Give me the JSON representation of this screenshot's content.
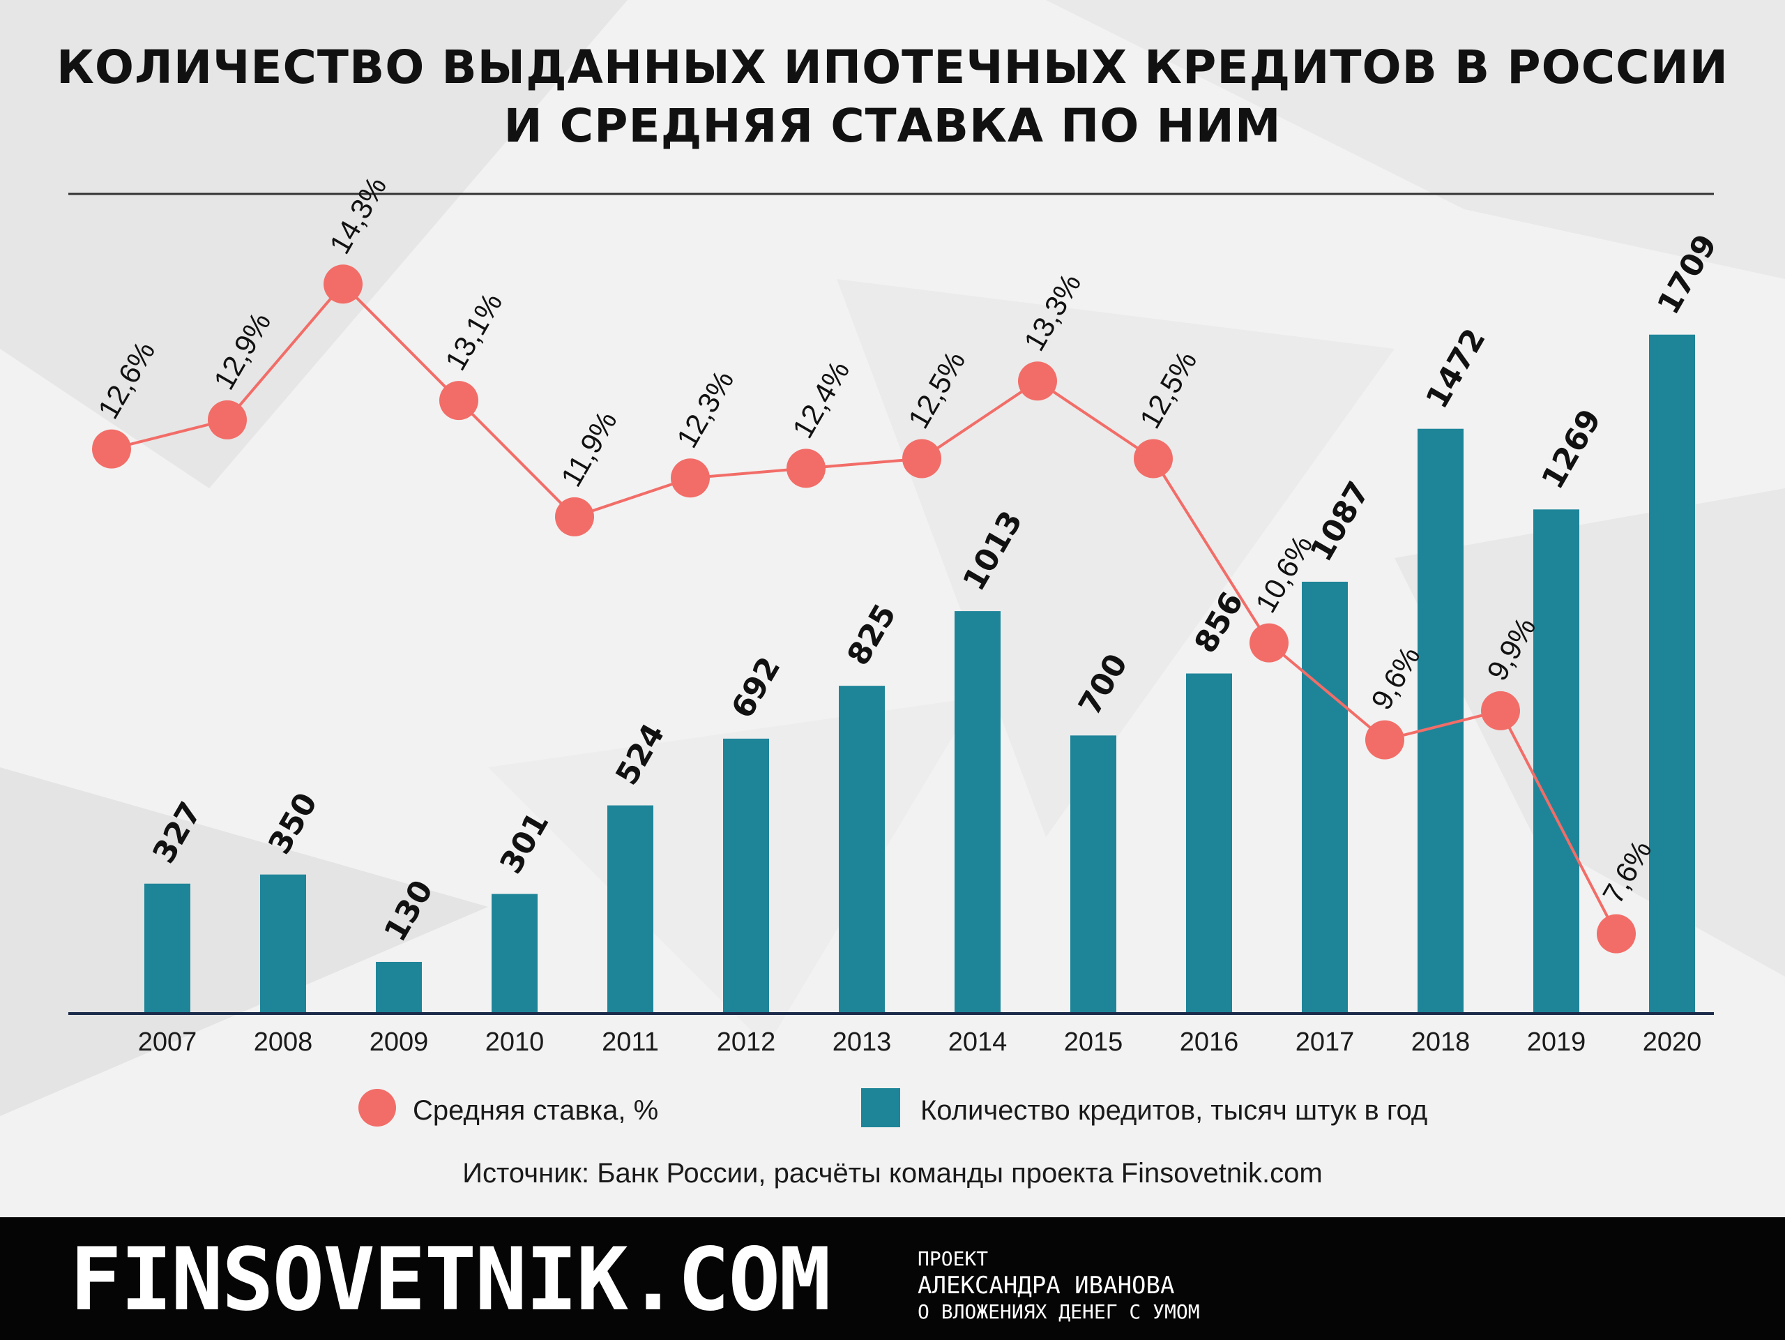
{
  "title": {
    "line1": "КОЛИЧЕСТВО ВЫДАННЫХ ИПОТЕЧНЫХ КРЕДИТОВ В РОССИИ",
    "line2": "И СРЕДНЯЯ СТАВКА ПО НИМ"
  },
  "chart_data": {
    "type": "bar",
    "categories": [
      "2007",
      "2008",
      "2009",
      "2010",
      "2011",
      "2012",
      "2013",
      "2014",
      "2015",
      "2016",
      "2017",
      "2018",
      "2019",
      "2020"
    ],
    "series": [
      {
        "name": "Количество кредитов, тысяч штук в год",
        "type": "bar",
        "values": [
          327,
          350,
          130,
          301,
          524,
          692,
          825,
          1013,
          700,
          856,
          1087,
          1472,
          1269,
          1709
        ],
        "labels": [
          "327",
          "350",
          "130",
          "301",
          "524",
          "692",
          "825",
          "1013",
          "700",
          "856",
          "1087",
          "1472",
          "1269",
          "1709"
        ]
      },
      {
        "name": "Средняя ставка, %",
        "type": "line",
        "values": [
          12.6,
          12.9,
          14.3,
          13.1,
          11.9,
          12.3,
          12.4,
          12.5,
          13.3,
          12.5,
          10.6,
          9.6,
          9.9,
          7.6
        ],
        "labels": [
          "12,6%",
          "12,9%",
          "14,3%",
          "13,1%",
          "11,9%",
          "12,3%",
          "12,4%",
          "12,5%",
          "13,3%",
          "12,5%",
          "10,6%",
          "9,6%",
          "9,9%",
          "7,6%"
        ]
      }
    ],
    "legend": {
      "placement": "bottom",
      "items": [
        "Средняя ставка, %",
        "Количество кредитов, тысяч штук в год"
      ]
    },
    "colors": {
      "bar": "#1e8599",
      "line": "#f26d68",
      "axis": "#1c2b4a"
    }
  },
  "source": "Источник: Банк России, расчёты команды проекта Finsovetnik.com",
  "footer": {
    "brand": "FINSOVETNIK.COM",
    "tagline1": "ПРОЕКТ",
    "tagline2": "АЛЕКСАНДРА ИВАНОВА",
    "tagline3": "О ВЛОЖЕНИЯХ ДЕНЕГ С УМОМ"
  }
}
